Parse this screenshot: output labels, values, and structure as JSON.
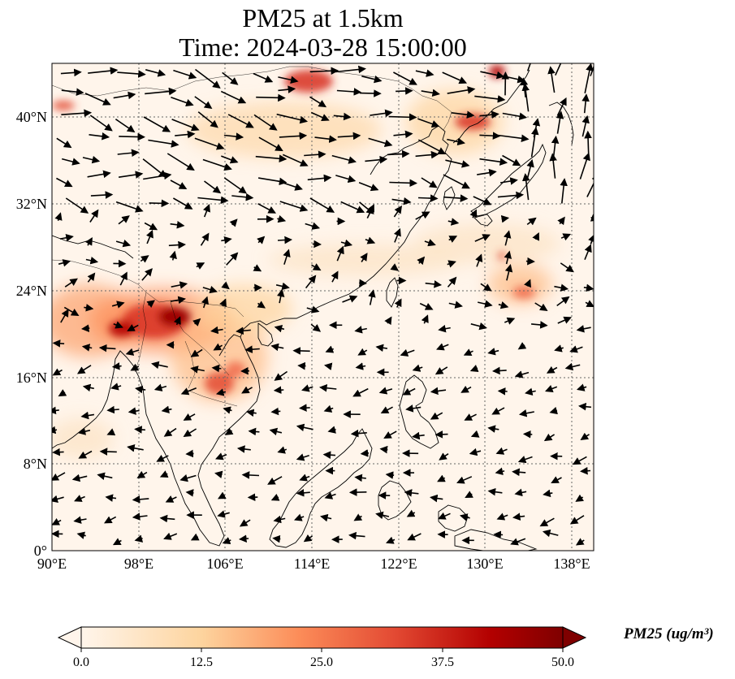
{
  "title_line1": "PM25 at 1.5km",
  "title_line2": "Time: 2024-03-28 15:00:00",
  "lon_ticks": [
    "90°E",
    "98°E",
    "106°E",
    "114°E",
    "122°E",
    "130°E",
    "138°E"
  ],
  "lat_ticks": [
    "0°",
    "8°N",
    "16°N",
    "24°N",
    "32°N",
    "40°N"
  ],
  "colorbar": {
    "label": "PM25 (ug/m³)",
    "min": 0.0,
    "max": 50.0,
    "ticks": [
      "0.0",
      "12.5",
      "25.0",
      "37.5",
      "50.0"
    ],
    "colormap": [
      "#fff5eb",
      "#fdd49e",
      "#fdbb84",
      "#fc8d59",
      "#ef6548",
      "#d7301f",
      "#990000",
      "#7f0000"
    ]
  },
  "map": {
    "lon_range": [
      90,
      140
    ],
    "lat_range": [
      0,
      45
    ],
    "gridlines": true
  }
}
